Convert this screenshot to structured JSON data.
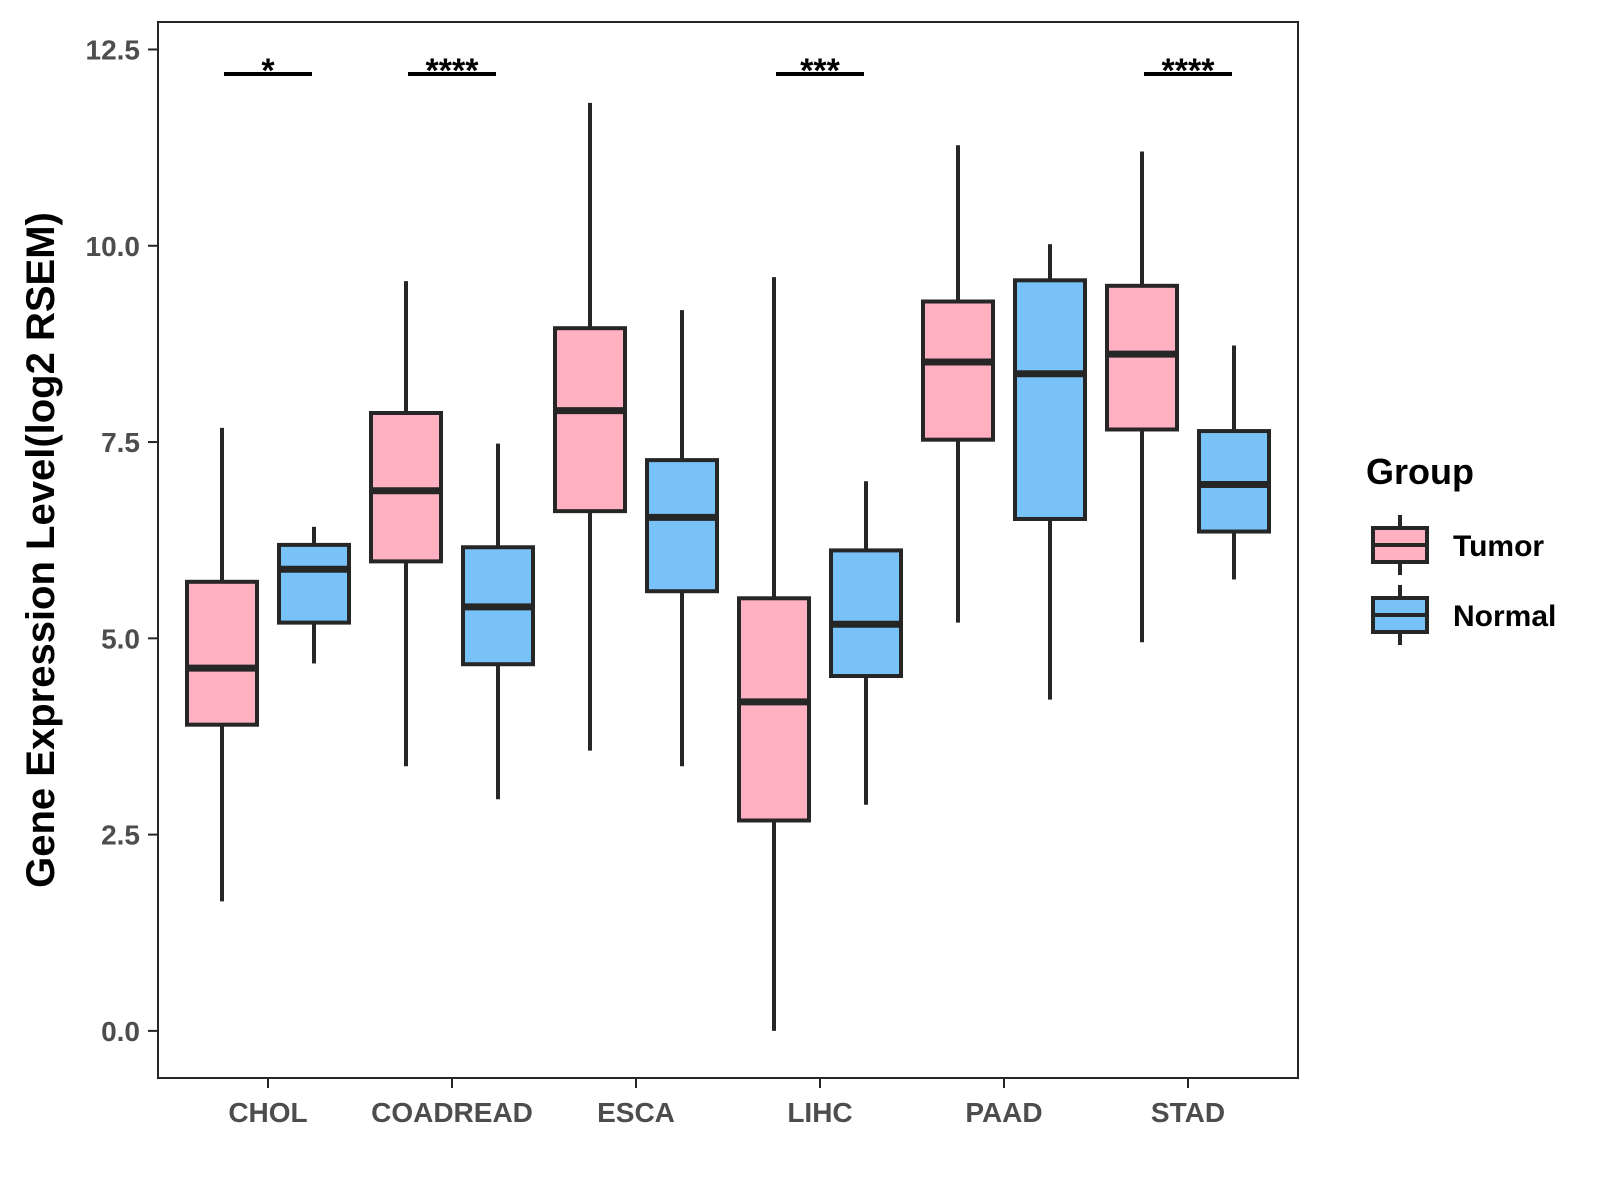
{
  "chart_data": {
    "type": "boxplot",
    "title": "",
    "xlabel": "",
    "ylabel": "Gene Expression Level(log2 RSEM)",
    "ylim": [
      -0.6,
      12.85
    ],
    "yticks": [
      0.0,
      2.5,
      5.0,
      7.5,
      10.0,
      12.5
    ],
    "ytick_labels": [
      "0.0",
      "2.5",
      "5.0",
      "7.5",
      "10.0",
      "12.5"
    ],
    "categories": [
      "CHOL",
      "COADREAD",
      "ESCA",
      "LIHC",
      "PAAD",
      "STAD"
    ],
    "legend": {
      "title": "Group",
      "position": "right"
    },
    "series": [
      {
        "name": "Tumor",
        "color": "#FFB0C1",
        "boxes": [
          {
            "min": 1.65,
            "q1": 3.9,
            "median": 4.62,
            "q3": 5.72,
            "max": 7.68
          },
          {
            "min": 3.37,
            "q1": 5.98,
            "median": 6.88,
            "q3": 7.87,
            "max": 9.55
          },
          {
            "min": 3.57,
            "q1": 6.62,
            "median": 7.9,
            "q3": 8.95,
            "max": 11.82
          },
          {
            "min": 0.0,
            "q1": 2.68,
            "median": 4.19,
            "q3": 5.51,
            "max": 9.6
          },
          {
            "min": 5.2,
            "q1": 7.53,
            "median": 8.52,
            "q3": 9.29,
            "max": 11.28
          },
          {
            "min": 4.95,
            "q1": 7.66,
            "median": 8.62,
            "q3": 9.49,
            "max": 11.2
          }
        ]
      },
      {
        "name": "Normal",
        "color": "#78C2F8",
        "boxes": [
          {
            "min": 4.68,
            "q1": 5.2,
            "median": 5.88,
            "q3": 6.19,
            "max": 6.42
          },
          {
            "min": 2.95,
            "q1": 4.67,
            "median": 5.4,
            "q3": 6.16,
            "max": 7.48
          },
          {
            "min": 3.37,
            "q1": 5.6,
            "median": 6.54,
            "q3": 7.27,
            "max": 9.18
          },
          {
            "min": 2.88,
            "q1": 4.52,
            "median": 5.18,
            "q3": 6.12,
            "max": 7.0
          },
          {
            "min": 4.22,
            "q1": 6.52,
            "median": 8.37,
            "q3": 9.56,
            "max": 10.02
          },
          {
            "min": 5.75,
            "q1": 6.36,
            "median": 6.96,
            "q3": 7.64,
            "max": 8.73
          }
        ]
      }
    ],
    "significance": [
      "*",
      "****",
      "",
      "***",
      "",
      "****"
    ]
  }
}
